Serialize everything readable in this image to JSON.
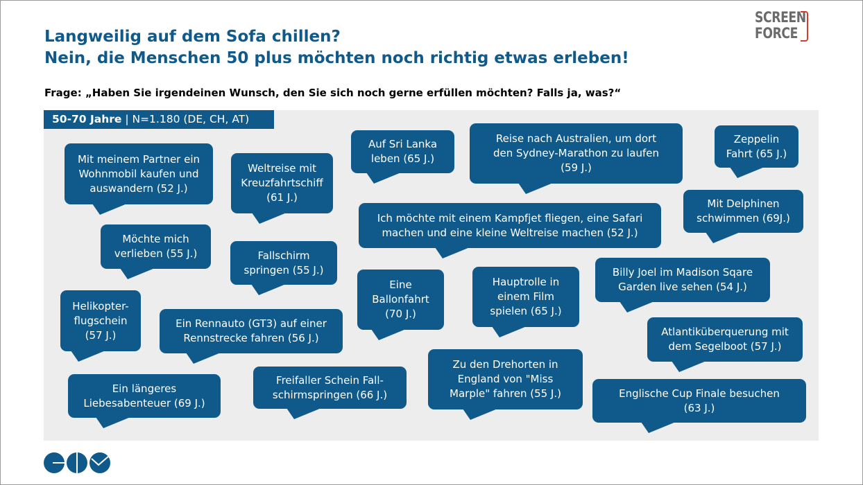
{
  "title": "Langweilig auf dem Sofa chillen?\nNein, die Menschen 50 plus möchten noch richtig etwas erleben!",
  "question": "Frage: „Haben Sie irgendeinen Wunsch, den Sie sich noch gerne erfüllen möchten? Falls ja, was?“",
  "sample": {
    "group": "50-70 Jahre",
    "separator": " | ",
    "detail": "N=1.180 (DE, CH, AT)"
  },
  "logo_top": {
    "text": "SCREEN\nFORCE",
    "accent_color": "#d23c2c"
  },
  "logo_bottom": {
    "name": "company-logo",
    "color": "#0f5a8a"
  },
  "colors": {
    "primary": "#0f5a8a",
    "panel": "#ededed"
  },
  "bubbles": [
    "Mit meinem Partner ein\nWohnmobil kaufen und\nauswandern (52 J.)",
    "Weltreise mit\nKreuzfahrtschiff\n(61 J.)",
    "Auf Sri Lanka\nleben (65 J.)",
    "Reise nach Australien, um dort\nden Sydney-Marathon zu laufen\n(59 J.)",
    "Zeppelin\nFahrt (65 J.)",
    "Mit Delphinen\nschwimmen (69J.)",
    "Ich möchte mit einem Kampfjet fliegen, eine Safari\nmachen und eine kleine Weltreise machen (52 J.)",
    "Möchte mich\nverlieben (55 J.)",
    "Fallschirm\nspringen (55 J.)",
    "Eine\nBallonfahrt\n(70 J.)",
    "Hauptrolle in\neinem Film\nspielen (65 J.)",
    "Billy Joel im Madison Sqare\nGarden live sehen (54 J.)",
    "Helikopter-\nflugschein\n(57 J.)",
    "Ein Rennauto (GT3) auf einer\nRennstrecke fahren (56 J.)",
    "Atlantiküberquerung mit\ndem Segelboot (57 J.)",
    "Zu den Drehorten in\nEngland von \"Miss\nMarple\" fahren (55 J.)",
    "Ein längeres\nLiebesabenteuer (69 J.)",
    "Freifaller Schein Fall-\nschirmspringen (66 J.)",
    "Englische Cup Finale besuchen\n(63 J.)"
  ]
}
